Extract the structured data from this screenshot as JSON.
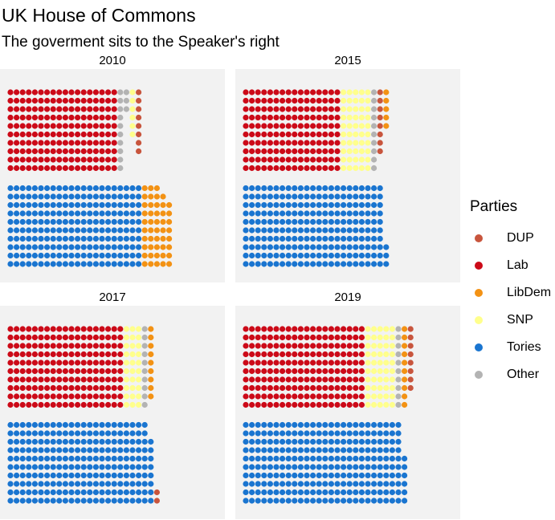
{
  "chart_data": {
    "type": "scatter",
    "title": "UK House of Commons",
    "subtitle": "The goverment sits to the Speaker's right",
    "legend": {
      "title": "Parties",
      "placement": "right",
      "entries": [
        {
          "name": "DUP",
          "color": "#C8553D"
        },
        {
          "name": "Lab",
          "color": "#CC0A18"
        },
        {
          "name": "LibDem",
          "color": "#F39214"
        },
        {
          "name": "SNP",
          "color": "#FFFF8C"
        },
        {
          "name": "Tories",
          "color": "#1A75D0"
        },
        {
          "name": "Other",
          "color": "#B3B3B3"
        }
      ]
    },
    "rows_per_block": 10,
    "facets": [
      {
        "label": "2010",
        "top": [
          {
            "party": "Lab",
            "columns": [
              10,
              10,
              10,
              10,
              10,
              10,
              10,
              10,
              10,
              10,
              10,
              10,
              10,
              10,
              10,
              10,
              10,
              10
            ]
          },
          {
            "party": "Other",
            "columns": [
              10
            ]
          },
          {
            "party": "Other",
            "columns": [
              3
            ]
          },
          {
            "party": "SNP",
            "columns": [
              6
            ]
          },
          {
            "party": "DUP",
            "columns": [
              8
            ]
          }
        ],
        "bottom": [
          {
            "party": "Tories",
            "columns": [
              10,
              10,
              10,
              10,
              10,
              10,
              10,
              10,
              10,
              10,
              10,
              10,
              10,
              10,
              10,
              10,
              10,
              10,
              10,
              10,
              10,
              10
            ]
          },
          {
            "party": "LibDem",
            "columns": [
              10,
              10,
              10,
              9,
              8
            ]
          }
        ]
      },
      {
        "label": "2015",
        "top": [
          {
            "party": "Lab",
            "columns": [
              10,
              10,
              10,
              10,
              10,
              10,
              10,
              10,
              10,
              10,
              10,
              10,
              10,
              10,
              10,
              10
            ]
          },
          {
            "party": "SNP",
            "columns": [
              10,
              10,
              10,
              10,
              10
            ]
          },
          {
            "party": "Other",
            "columns": [
              10
            ]
          },
          {
            "party": "DUP",
            "columns": [
              8
            ]
          },
          {
            "party": "LibDem",
            "columns": [
              5
            ]
          }
        ],
        "bottom": [
          {
            "party": "Tories",
            "columns": [
              10,
              10,
              10,
              10,
              10,
              10,
              10,
              10,
              10,
              10,
              10,
              10,
              10,
              10,
              10,
              10,
              10,
              10,
              10,
              10,
              10,
              10,
              10,
              3
            ]
          }
        ]
      },
      {
        "label": "2017",
        "top": [
          {
            "party": "Lab",
            "columns": [
              10,
              10,
              10,
              10,
              10,
              10,
              10,
              10,
              10,
              10,
              10,
              10,
              10,
              10,
              10,
              10,
              10,
              10,
              10
            ]
          },
          {
            "party": "SNP",
            "columns": [
              10,
              10,
              10
            ]
          },
          {
            "party": "Other",
            "columns": [
              10
            ]
          },
          {
            "party": "LibDem",
            "columns": [
              9
            ]
          }
        ],
        "bottom": [
          {
            "party": "Tories",
            "columns": [
              10,
              10,
              10,
              10,
              10,
              10,
              10,
              10,
              10,
              10,
              10,
              10,
              10,
              10,
              10,
              10,
              10,
              10,
              10,
              10,
              10,
              10,
              10,
              8
            ]
          },
          {
            "party": "DUP",
            "columns": [
              2
            ]
          }
        ]
      },
      {
        "label": "2019",
        "top": [
          {
            "party": "Lab",
            "columns": [
              10,
              10,
              10,
              10,
              10,
              10,
              10,
              10,
              10,
              10,
              10,
              10,
              10,
              10,
              10,
              10,
              10,
              10,
              10,
              10
            ]
          },
          {
            "party": "SNP",
            "columns": [
              10,
              10,
              10,
              10,
              10
            ]
          },
          {
            "party": "Other",
            "columns": [
              10
            ]
          },
          {
            "party": "LibDem",
            "columns": [
              10
            ]
          },
          {
            "party": "DUP",
            "columns": [
              8
            ]
          }
        ],
        "bottom": [
          {
            "party": "Tories",
            "columns": [
              10,
              10,
              10,
              10,
              10,
              10,
              10,
              10,
              10,
              10,
              10,
              10,
              10,
              10,
              10,
              10,
              10,
              10,
              10,
              10,
              10,
              10,
              10,
              10,
              10,
              10,
              6
            ]
          }
        ]
      }
    ]
  }
}
